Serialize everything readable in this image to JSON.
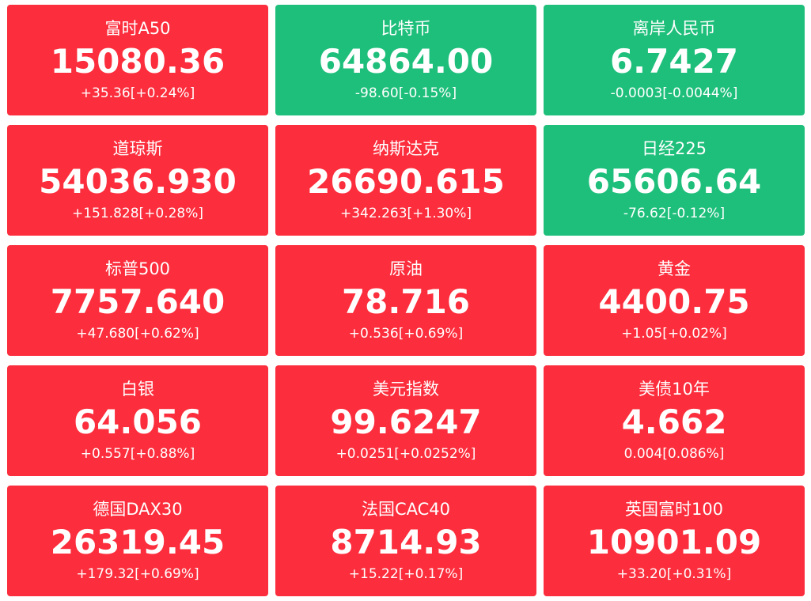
{
  "tiles": [
    {
      "name": "富时A50",
      "value": "15080.36",
      "change": "+35.36[+0.24%]",
      "color": "#fc2d3c"
    },
    {
      "name": "比特币",
      "value": "64864.00",
      "change": "-98.60[-0.15%]",
      "color": "#1ebf7b"
    },
    {
      "name": "离岸人民币",
      "value": "6.7427",
      "change": "-0.0003[-0.0044%]",
      "color": "#1ebf7b"
    },
    {
      "name": "道琼斯",
      "value": "54036.930",
      "change": "+151.828[+0.28%]",
      "color": "#fc2d3c"
    },
    {
      "name": "纳斯达克",
      "value": "26690.615",
      "change": "+342.263[+1.30%]",
      "color": "#fc2d3c"
    },
    {
      "name": "日经225",
      "value": "65606.64",
      "change": "-76.62[-0.12%]",
      "color": "#1ebf7b"
    },
    {
      "name": "标普500",
      "value": "7757.640",
      "change": "+47.680[+0.62%]",
      "color": "#fc2d3c"
    },
    {
      "name": "原油",
      "value": "78.716",
      "change": "+0.536[+0.69%]",
      "color": "#fc2d3c"
    },
    {
      "name": "黄金",
      "value": "4400.75",
      "change": "+1.05[+0.02%]",
      "color": "#fc2d3c"
    },
    {
      "name": "白银",
      "value": "64.056",
      "change": "+0.557[+0.88%]",
      "color": "#fc2d3c"
    },
    {
      "name": "美元指数",
      "value": "99.6247",
      "change": "+0.0251[+0.0252%]",
      "color": "#fc2d3c"
    },
    {
      "name": "美债10年",
      "value": "4.662",
      "change": "0.004[0.086%]",
      "color": "#fc2d3c"
    },
    {
      "name": "德国DAX30",
      "value": "26319.45",
      "change": "+179.32[+0.69%]",
      "color": "#fc2d3c"
    },
    {
      "name": "法国CAC40",
      "value": "8714.93",
      "change": "+15.22[+0.17%]",
      "color": "#fc2d3c"
    },
    {
      "name": "英国富时100",
      "value": "10901.09",
      "change": "+33.20[+0.31%]",
      "color": "#fc2d3c"
    }
  ]
}
